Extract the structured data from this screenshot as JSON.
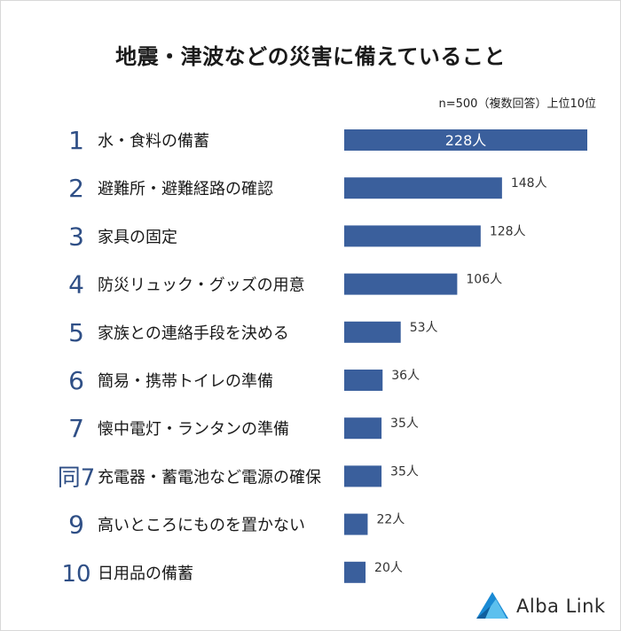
{
  "chart_data": {
    "type": "bar",
    "title": "地震・津波などの災害に備えていること",
    "note": "n=500（複数回答）上位10位",
    "ranks": [
      "1",
      "2",
      "3",
      "4",
      "5",
      "6",
      "7",
      "同7",
      "9",
      "10"
    ],
    "categories": [
      "水・食料の備蓄",
      "避難所・避難経路の確認",
      "家具の固定",
      "防災リュック・グッズの用意",
      "家族との連絡手段を決める",
      "簡易・携帯トイレの準備",
      "懐中電灯・ランタンの準備",
      "充電器・蓄電池など電源の確保",
      "高いところにものを置かない",
      "日用品の備蓄"
    ],
    "values": [
      228,
      148,
      128,
      106,
      53,
      36,
      35,
      35,
      22,
      20
    ],
    "value_labels": [
      "228人",
      "148人",
      "128人",
      "106人",
      "53人",
      "36人",
      "35人",
      "35人",
      "22人",
      "20人"
    ],
    "xlim": [
      0,
      228
    ],
    "bar_color": "#3a5f9c",
    "rank_color": "#2f4f86"
  },
  "brand": {
    "name": "Alba Link",
    "logo_color": "#1a8ad4"
  }
}
